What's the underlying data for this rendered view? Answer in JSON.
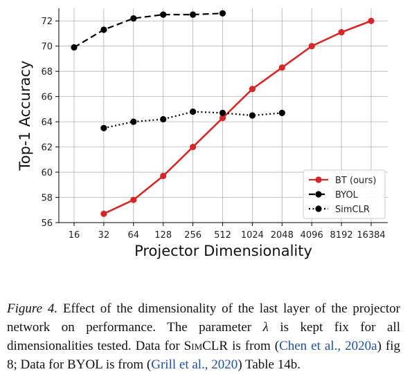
{
  "chart_data": {
    "type": "line",
    "xlabel": "Projector Dimensionality",
    "ylabel": "Top-1 Accuracy",
    "categories": [
      "16",
      "32",
      "64",
      "128",
      "256",
      "512",
      "1024",
      "2048",
      "4096",
      "8192",
      "16384"
    ],
    "ylim": [
      56,
      73
    ],
    "yticks": [
      56,
      58,
      60,
      62,
      64,
      66,
      68,
      70,
      72
    ],
    "grid": true,
    "legend_position": "lower-right",
    "series": [
      {
        "name": "BT (ours)",
        "color": "#d62728",
        "line_style": "solid",
        "values": [
          null,
          56.7,
          57.8,
          59.7,
          62.0,
          64.3,
          66.6,
          68.3,
          70.0,
          71.1,
          72.0
        ]
      },
      {
        "name": "BYOL",
        "color": "#000000",
        "line_style": "dashed",
        "values": [
          69.9,
          71.3,
          72.2,
          72.5,
          72.5,
          72.6,
          null,
          null,
          null,
          null,
          null
        ]
      },
      {
        "name": "SimCLR",
        "color": "#000000",
        "line_style": "dotted",
        "values": [
          null,
          63.5,
          64.0,
          64.2,
          64.8,
          64.7,
          64.5,
          64.7,
          null,
          null,
          null
        ]
      }
    ]
  },
  "caption": {
    "figure_label": "Figure 4.",
    "text_1": " Effect of the dimensionality of the last layer of the projector network on performance. The parameter ",
    "lambda": "λ",
    "text_2": " is kept fix for all dimensionalities tested. Data for ",
    "simclr": "SimCLR",
    "text_3": " is from (",
    "cite_1": "Chen et al., 2020a",
    "text_4": ") fig 8; Data for BYOL is from (",
    "cite_2": "Grill et al., 2020",
    "text_5": ") Table 14b."
  }
}
